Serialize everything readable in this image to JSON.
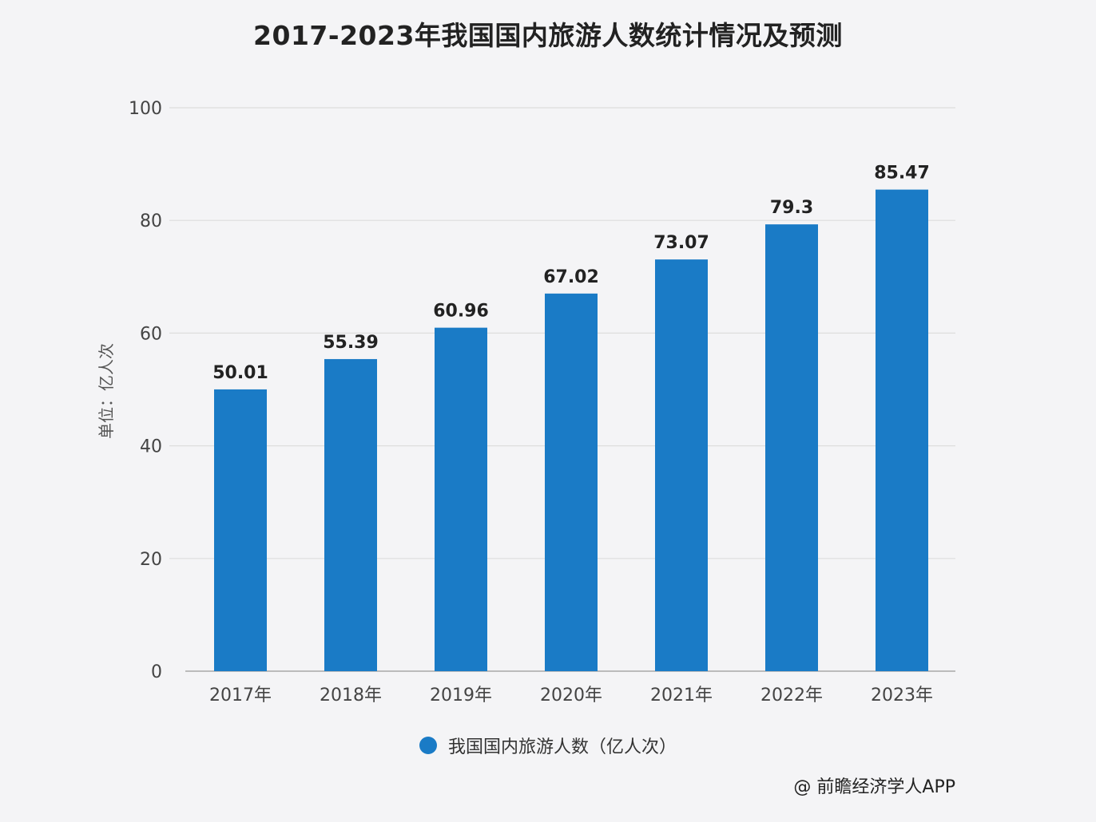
{
  "chart_data": {
    "type": "bar",
    "title": "2017-2023年我国国内旅游人数统计情况及预测",
    "ylabel": "单位：亿人次",
    "xlabel": "",
    "categories": [
      "2017年",
      "2018年",
      "2019年",
      "2020年",
      "2021年",
      "2022年",
      "2023年"
    ],
    "series": [
      {
        "name": "我国国内旅游人数（亿人次）",
        "values": [
          50.01,
          55.39,
          60.96,
          67.02,
          73.07,
          79.3,
          85.47
        ]
      }
    ],
    "value_labels": [
      "50.01",
      "55.39",
      "60.96",
      "67.02",
      "73.07",
      "79.3",
      "85.47"
    ],
    "ylim": [
      0,
      100
    ],
    "yticks": [
      0,
      20,
      40,
      60,
      80,
      100
    ],
    "grid": true,
    "legend_position": "bottom",
    "bar_color": "#1a7bc6"
  },
  "source": "@ 前瞻经济学人APP"
}
